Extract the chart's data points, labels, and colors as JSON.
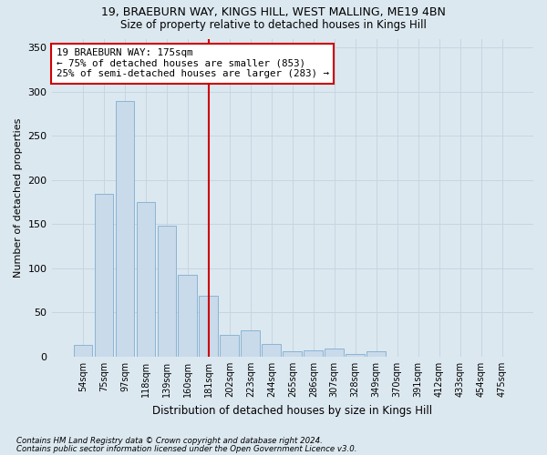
{
  "title1": "19, BRAEBURN WAY, KINGS HILL, WEST MALLING, ME19 4BN",
  "title2": "Size of property relative to detached houses in Kings Hill",
  "xlabel": "Distribution of detached houses by size in Kings Hill",
  "ylabel": "Number of detached properties",
  "footnote1": "Contains HM Land Registry data © Crown copyright and database right 2024.",
  "footnote2": "Contains public sector information licensed under the Open Government Licence v3.0.",
  "categories": [
    "54sqm",
    "75sqm",
    "97sqm",
    "118sqm",
    "139sqm",
    "160sqm",
    "181sqm",
    "202sqm",
    "223sqm",
    "244sqm",
    "265sqm",
    "286sqm",
    "307sqm",
    "328sqm",
    "349sqm",
    "370sqm",
    "391sqm",
    "412sqm",
    "433sqm",
    "454sqm",
    "475sqm"
  ],
  "values": [
    13,
    184,
    289,
    175,
    148,
    93,
    69,
    25,
    30,
    14,
    6,
    7,
    9,
    3,
    6,
    0,
    0,
    0,
    0,
    0,
    0
  ],
  "bar_color": "#c9daea",
  "bar_edge_color": "#8ab4d4",
  "grid_color": "#c8d4e0",
  "vline_x": 6.0,
  "vline_color": "#cc0000",
  "annotation_text": "19 BRAEBURN WAY: 175sqm\n← 75% of detached houses are smaller (853)\n25% of semi-detached houses are larger (283) →",
  "annotation_box_color": "#ffffff",
  "annotation_box_edge": "#cc0000",
  "ylim": [
    0,
    360
  ],
  "yticks": [
    0,
    50,
    100,
    150,
    200,
    250,
    300,
    350
  ],
  "background_color": "#dce8f0",
  "plot_background": "#dce8f0",
  "title1_fontsize": 9,
  "title2_fontsize": 8.5,
  "ylabel_fontsize": 8,
  "xlabel_fontsize": 8.5
}
